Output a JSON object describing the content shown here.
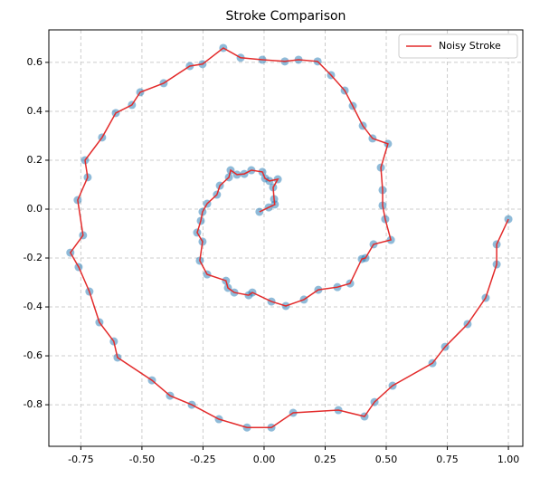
{
  "chart_data": {
    "type": "line",
    "title": "Stroke Comparison",
    "x": [
      -0.019,
      0.019,
      0.044,
      0.041,
      0.037,
      0.056,
      0.022,
      0.004,
      -0.007,
      -0.052,
      -0.081,
      -0.111,
      -0.137,
      -0.144,
      -0.181,
      -0.193,
      -0.233,
      -0.252,
      -0.259,
      -0.274,
      -0.252,
      -0.263,
      -0.233,
      -0.156,
      -0.148,
      -0.122,
      -0.063,
      -0.048,
      0.03,
      0.089,
      0.163,
      0.222,
      0.3,
      0.352,
      0.4,
      0.415,
      0.448,
      0.519,
      0.496,
      0.485,
      0.485,
      0.478,
      0.507,
      0.444,
      0.404,
      0.363,
      0.33,
      0.274,
      0.219,
      0.141,
      0.085,
      -0.007,
      -0.096,
      -0.167,
      -0.252,
      -0.304,
      -0.411,
      -0.507,
      -0.541,
      -0.607,
      -0.663,
      -0.733,
      -0.722,
      -0.763,
      -0.741,
      -0.793,
      -0.759,
      -0.715,
      -0.674,
      -0.615,
      -0.6,
      -0.459,
      -0.385,
      -0.296,
      -0.185,
      -0.07,
      0.03,
      0.119,
      0.304,
      0.411,
      0.452,
      0.526,
      0.689,
      0.741,
      0.833,
      0.907,
      0.952,
      0.952,
      1.0
    ],
    "y": [
      -0.011,
      0.007,
      0.019,
      0.041,
      0.089,
      0.122,
      0.115,
      0.126,
      0.152,
      0.159,
      0.144,
      0.141,
      0.159,
      0.13,
      0.096,
      0.059,
      0.022,
      -0.011,
      -0.048,
      -0.096,
      -0.133,
      -0.211,
      -0.267,
      -0.293,
      -0.322,
      -0.341,
      -0.352,
      -0.341,
      -0.378,
      -0.396,
      -0.37,
      -0.33,
      -0.319,
      -0.304,
      -0.204,
      -0.2,
      -0.144,
      -0.126,
      -0.041,
      0.015,
      0.078,
      0.17,
      0.267,
      0.289,
      0.341,
      0.422,
      0.485,
      0.548,
      0.604,
      0.611,
      0.604,
      0.611,
      0.619,
      0.659,
      0.593,
      0.585,
      0.515,
      0.478,
      0.426,
      0.393,
      0.293,
      0.2,
      0.13,
      0.037,
      -0.107,
      -0.178,
      -0.237,
      -0.337,
      -0.463,
      -0.541,
      -0.607,
      -0.7,
      -0.763,
      -0.8,
      -0.859,
      -0.893,
      -0.893,
      -0.833,
      -0.822,
      -0.848,
      -0.789,
      -0.722,
      -0.63,
      -0.563,
      -0.47,
      -0.363,
      -0.226,
      -0.144,
      -0.041
    ],
    "point_color": "#1f77b4",
    "series": [
      {
        "name": "Noisy Stroke",
        "color": "#e32b2b"
      }
    ],
    "xlim": [
      -0.881,
      1.059
    ],
    "ylim": [
      -0.97,
      0.733
    ],
    "xticks": [
      {
        "value": -0.75,
        "label": "-0.75"
      },
      {
        "value": -0.5,
        "label": "-0.50"
      },
      {
        "value": -0.25,
        "label": "-0.25"
      },
      {
        "value": 0,
        "label": "0.00"
      },
      {
        "value": 0.25,
        "label": "0.25"
      },
      {
        "value": 0.5,
        "label": "0.50"
      },
      {
        "value": 0.75,
        "label": "0.75"
      },
      {
        "value": 1,
        "label": "1.00"
      }
    ],
    "yticks": [
      -0.8,
      -0.6,
      -0.4,
      -0.2,
      {
        "value": 0,
        "label": "0.0"
      },
      0.2,
      0.4,
      0.6
    ],
    "grid": true,
    "legend": "upper right"
  }
}
